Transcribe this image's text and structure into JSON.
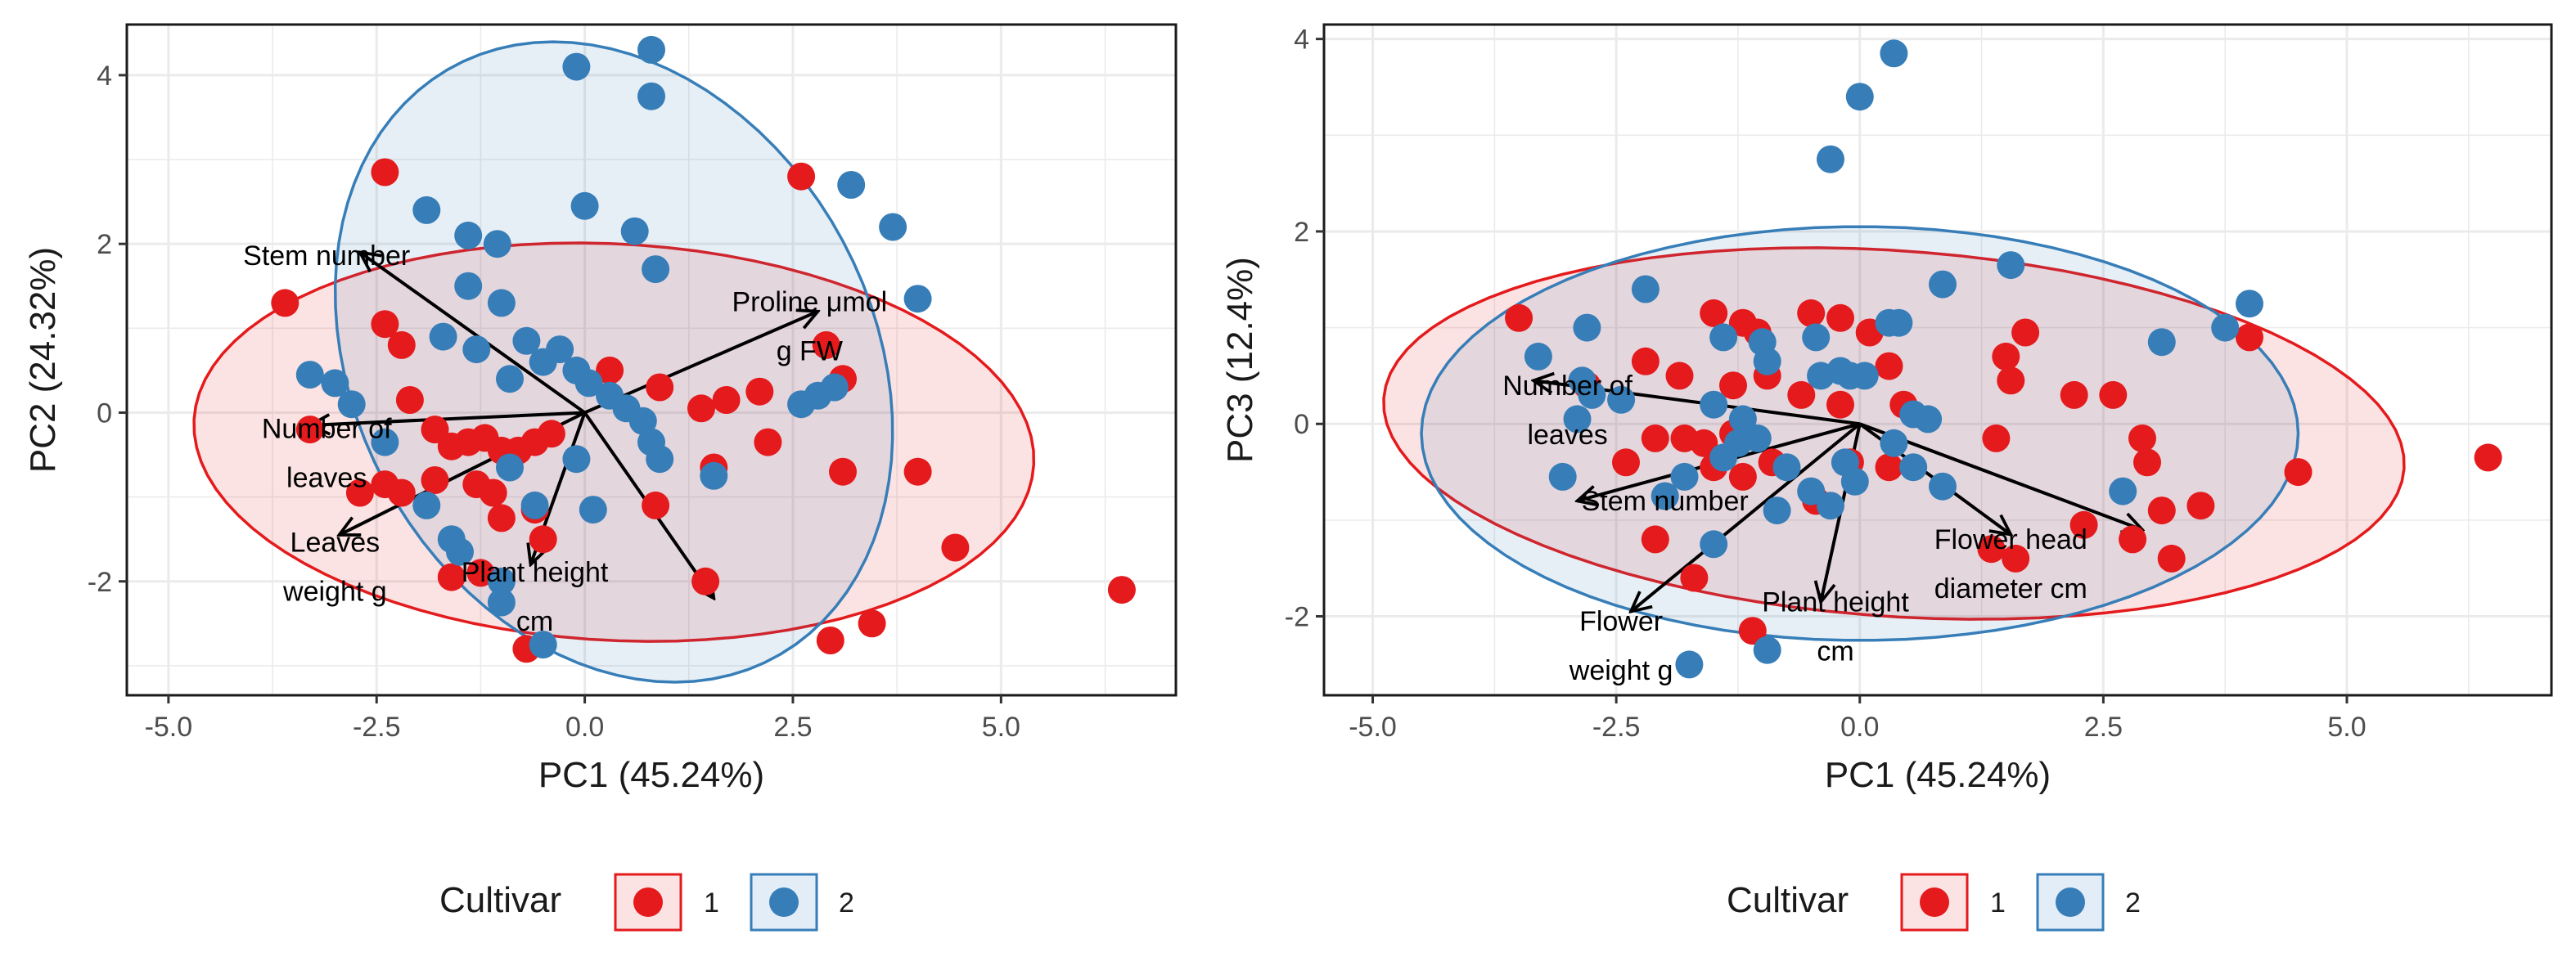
{
  "colors": {
    "cultivar_1": "#e41a1c",
    "cultivar_2": "#377eb8"
  },
  "chart_data": [
    {
      "type": "scatter",
      "subtype": "pca-biplot",
      "title": "",
      "xlabel": "PC1 (45.24%)",
      "ylabel": "PC2 (24.32%)",
      "xlim": [
        -5.5,
        7.1
      ],
      "ylim": [
        -3.35,
        4.6
      ],
      "xticks": [
        -5.0,
        -2.5,
        0.0,
        2.5,
        5.0
      ],
      "xtick_labels": [
        "-5.0",
        "-2.5",
        "0.0",
        "2.5",
        "5.0"
      ],
      "yticks": [
        -2,
        0,
        2,
        4
      ],
      "ytick_labels": [
        "-2",
        "0",
        "2",
        "4"
      ],
      "grid": true,
      "legend": {
        "title": "Cultivar",
        "position": "bottom",
        "entries": [
          "1",
          "2"
        ]
      },
      "ellipses": [
        {
          "series": "1",
          "center": [
            0.35,
            -0.35
          ],
          "rx": 5.05,
          "ry": 2.35,
          "angle_deg": -3
        },
        {
          "series": "2",
          "center": [
            0.35,
            0.6
          ],
          "rx": 4.0,
          "ry": 3.1,
          "angle_deg": -60
        }
      ],
      "loadings": [
        {
          "label_lines": [
            "Stem number"
          ],
          "x": -2.7,
          "y": 1.9,
          "label_x": -3.1,
          "label_y": 1.75
        },
        {
          "label_lines": [
            "Proline μmol",
            "g FW"
          ],
          "x": 2.8,
          "y": 1.2,
          "label_x": 2.7,
          "label_y": 1.2
        },
        {
          "label_lines": [
            "Number of",
            "leaves"
          ],
          "x": -3.3,
          "y": -0.15,
          "label_x": -3.1,
          "label_y": -0.3
        },
        {
          "label_lines": [
            "Leaves",
            "weight g"
          ],
          "x": -2.95,
          "y": -1.45,
          "label_x": -3.0,
          "label_y": -1.65
        },
        {
          "label_lines": [
            "Plant height",
            "cm"
          ],
          "x": -0.65,
          "y": -1.8,
          "label_x": -0.6,
          "label_y": -2.0
        },
        {
          "label_lines": [
            "",
            ""
          ],
          "x": 1.55,
          "y": -2.2,
          "label_x": 1.55,
          "label_y": -2.2
        }
      ],
      "series": [
        {
          "name": "1",
          "color": "#e41a1c",
          "points": [
            [
              -3.6,
              1.3
            ],
            [
              -2.4,
              2.85
            ],
            [
              -2.4,
              1.05
            ],
            [
              -2.2,
              0.8
            ],
            [
              -2.1,
              0.15
            ],
            [
              -1.8,
              -0.2
            ],
            [
              -1.6,
              -0.4
            ],
            [
              -1.4,
              -0.35
            ],
            [
              -1.2,
              -0.3
            ],
            [
              -1.0,
              -0.45
            ],
            [
              -3.3,
              -0.2
            ],
            [
              -2.7,
              -0.95
            ],
            [
              -2.4,
              -0.85
            ],
            [
              -2.2,
              -0.95
            ],
            [
              -1.8,
              -0.8
            ],
            [
              -1.3,
              -0.85
            ],
            [
              -1.1,
              -0.95
            ],
            [
              -0.8,
              -0.45
            ],
            [
              -0.6,
              -0.35
            ],
            [
              -0.4,
              -0.25
            ],
            [
              -0.6,
              -1.15
            ],
            [
              -1.0,
              -1.25
            ],
            [
              -1.25,
              -1.9
            ],
            [
              -1.6,
              -1.95
            ],
            [
              -0.5,
              -1.5
            ],
            [
              -0.7,
              -2.8
            ],
            [
              0.3,
              0.5
            ],
            [
              0.9,
              0.3
            ],
            [
              1.4,
              0.05
            ],
            [
              1.7,
              0.15
            ],
            [
              2.1,
              0.25
            ],
            [
              2.2,
              -0.35
            ],
            [
              1.55,
              -0.65
            ],
            [
              1.45,
              -2.0
            ],
            [
              2.6,
              2.8
            ],
            [
              2.9,
              0.8
            ],
            [
              3.1,
              0.4
            ],
            [
              3.1,
              -0.7
            ],
            [
              4.0,
              -0.7
            ],
            [
              4.45,
              -1.6
            ],
            [
              3.45,
              -2.5
            ],
            [
              2.95,
              -2.7
            ],
            [
              6.45,
              -2.1
            ],
            [
              0.85,
              -1.1
            ]
          ]
        },
        {
          "name": "2",
          "color": "#377eb8",
          "points": [
            [
              -0.1,
              4.1
            ],
            [
              0.8,
              4.3
            ],
            [
              0.8,
              3.75
            ],
            [
              3.2,
              2.7
            ],
            [
              3.7,
              2.2
            ],
            [
              4.0,
              1.35
            ],
            [
              -1.9,
              2.4
            ],
            [
              -1.4,
              2.1
            ],
            [
              -1.05,
              2.0
            ],
            [
              0.0,
              2.45
            ],
            [
              0.6,
              2.15
            ],
            [
              0.85,
              1.7
            ],
            [
              -1.4,
              1.5
            ],
            [
              -1.0,
              1.3
            ],
            [
              -0.7,
              0.85
            ],
            [
              -0.5,
              0.6
            ],
            [
              -0.3,
              0.75
            ],
            [
              -0.1,
              0.5
            ],
            [
              0.05,
              0.35
            ],
            [
              0.3,
              0.2
            ],
            [
              0.5,
              0.05
            ],
            [
              0.7,
              -0.1
            ],
            [
              0.8,
              -0.35
            ],
            [
              0.9,
              -0.55
            ],
            [
              -1.7,
              0.9
            ],
            [
              -1.3,
              0.75
            ],
            [
              -0.9,
              0.4
            ],
            [
              -3.3,
              0.45
            ],
            [
              -3.0,
              0.35
            ],
            [
              -2.8,
              0.1
            ],
            [
              -2.4,
              -0.35
            ],
            [
              -1.9,
              -1.1
            ],
            [
              -1.6,
              -1.5
            ],
            [
              -1.5,
              -1.65
            ],
            [
              -1.0,
              -2.0
            ],
            [
              -1.0,
              -2.25
            ],
            [
              -0.6,
              -1.1
            ],
            [
              -0.9,
              -0.65
            ],
            [
              0.1,
              -1.15
            ],
            [
              -0.1,
              -0.55
            ],
            [
              1.55,
              -0.75
            ],
            [
              2.6,
              0.1
            ],
            [
              2.8,
              0.2
            ],
            [
              3.0,
              0.3
            ],
            [
              -0.5,
              -2.75
            ]
          ]
        }
      ]
    },
    {
      "type": "scatter",
      "subtype": "pca-biplot",
      "title": "",
      "xlabel": "PC1 (45.24%)",
      "ylabel": "PC3 (12.4%)",
      "xlim": [
        -5.5,
        7.1
      ],
      "ylim": [
        -2.82,
        4.15
      ],
      "xticks": [
        -5.0,
        -2.5,
        0.0,
        2.5,
        5.0
      ],
      "xtick_labels": [
        "-5.0",
        "-2.5",
        "0.0",
        "2.5",
        "5.0"
      ],
      "yticks": [
        -2,
        0,
        2,
        4
      ],
      "ytick_labels": [
        "-2",
        "0",
        "2",
        "4"
      ],
      "grid": true,
      "legend": {
        "title": "Cultivar",
        "position": "bottom",
        "entries": [
          "1",
          "2"
        ]
      },
      "ellipses": [
        {
          "series": "1",
          "center": [
            0.35,
            -0.1
          ],
          "rx": 5.25,
          "ry": 1.9,
          "angle_deg": -4
        },
        {
          "series": "2",
          "center": [
            0.0,
            -0.1
          ],
          "rx": 4.5,
          "ry": 2.15,
          "angle_deg": 0
        }
      ],
      "loadings": [
        {
          "label_lines": [
            "Number of",
            "leaves"
          ],
          "x": -3.35,
          "y": 0.45,
          "label_x": -3.0,
          "label_y": 0.3
        },
        {
          "label_lines": [
            "Stem number"
          ],
          "x": -2.9,
          "y": -0.8,
          "label_x": -2.0,
          "label_y": -0.9
        },
        {
          "label_lines": [
            "Flower",
            "weight g"
          ],
          "x": -2.35,
          "y": -1.95,
          "label_x": -2.45,
          "label_y": -2.15
        },
        {
          "label_lines": [
            "Plant height",
            "cm"
          ],
          "x": -0.4,
          "y": -1.85,
          "label_x": -0.25,
          "label_y": -1.95
        },
        {
          "label_lines": [
            "Flower head",
            "diameter cm"
          ],
          "x": 1.55,
          "y": -1.15,
          "label_x": 1.55,
          "label_y": -1.3
        },
        {
          "label_lines": [
            "",
            ""
          ],
          "x": 2.9,
          "y": -1.1,
          "label_x": 2.9,
          "label_y": -1.1
        }
      ],
      "series": [
        {
          "name": "1",
          "color": "#e41a1c",
          "points": [
            [
              -3.5,
              1.1
            ],
            [
              -1.5,
              1.15
            ],
            [
              -1.2,
              1.05
            ],
            [
              -1.05,
              0.95
            ],
            [
              -0.5,
              1.15
            ],
            [
              -0.2,
              1.1
            ],
            [
              0.1,
              0.95
            ],
            [
              0.3,
              0.6
            ],
            [
              0.45,
              0.2
            ],
            [
              1.5,
              0.7
            ],
            [
              1.55,
              0.45
            ],
            [
              1.7,
              0.95
            ],
            [
              -2.8,
              0.4
            ],
            [
              -2.2,
              0.65
            ],
            [
              -1.85,
              0.5
            ],
            [
              -1.3,
              0.4
            ],
            [
              -0.95,
              0.5
            ],
            [
              -0.6,
              0.3
            ],
            [
              -0.2,
              0.2
            ],
            [
              -2.4,
              -0.4
            ],
            [
              -2.1,
              -0.15
            ],
            [
              -1.8,
              -0.15
            ],
            [
              -1.6,
              -0.2
            ],
            [
              -1.3,
              -0.1
            ],
            [
              -1.5,
              -0.45
            ],
            [
              -1.2,
              -0.55
            ],
            [
              -0.9,
              -0.4
            ],
            [
              -0.45,
              -0.8
            ],
            [
              -2.1,
              -1.2
            ],
            [
              -1.7,
              -1.6
            ],
            [
              -1.1,
              -2.15
            ],
            [
              -0.1,
              -0.4
            ],
            [
              0.3,
              -0.45
            ],
            [
              1.4,
              -0.15
            ],
            [
              1.35,
              -1.3
            ],
            [
              1.6,
              -1.4
            ],
            [
              2.2,
              0.3
            ],
            [
              2.6,
              0.3
            ],
            [
              2.9,
              -0.15
            ],
            [
              2.95,
              -0.4
            ],
            [
              2.3,
              -1.05
            ],
            [
              2.8,
              -1.2
            ],
            [
              3.1,
              -0.9
            ],
            [
              3.2,
              -1.4
            ],
            [
              3.5,
              -0.85
            ],
            [
              4.0,
              0.9
            ],
            [
              4.5,
              -0.5
            ],
            [
              6.45,
              -0.35
            ]
          ]
        },
        {
          "name": "2",
          "color": "#377eb8",
          "points": [
            [
              0.35,
              3.85
            ],
            [
              0.0,
              3.4
            ],
            [
              -0.3,
              2.75
            ],
            [
              1.55,
              1.65
            ],
            [
              3.75,
              1.0
            ],
            [
              4.0,
              1.25
            ],
            [
              -2.8,
              1.0
            ],
            [
              -2.2,
              1.4
            ],
            [
              -1.4,
              0.9
            ],
            [
              -1.0,
              0.85
            ],
            [
              -0.45,
              0.9
            ],
            [
              -0.95,
              0.65
            ],
            [
              0.3,
              1.05
            ],
            [
              0.4,
              1.05
            ],
            [
              0.85,
              1.45
            ],
            [
              3.1,
              0.85
            ],
            [
              -3.3,
              0.7
            ],
            [
              -2.85,
              0.45
            ],
            [
              -2.75,
              0.3
            ],
            [
              -2.9,
              0.05
            ],
            [
              -2.45,
              0.25
            ],
            [
              -1.5,
              0.2
            ],
            [
              -1.2,
              0.05
            ],
            [
              -0.4,
              0.5
            ],
            [
              -0.2,
              0.55
            ],
            [
              -0.1,
              0.5
            ],
            [
              0.05,
              0.5
            ],
            [
              0.55,
              0.1
            ],
            [
              0.7,
              0.05
            ],
            [
              -3.05,
              -0.55
            ],
            [
              -2.0,
              -0.75
            ],
            [
              -1.8,
              -0.55
            ],
            [
              -1.4,
              -0.35
            ],
            [
              -1.25,
              -0.2
            ],
            [
              -1.05,
              -0.15
            ],
            [
              -0.75,
              -0.45
            ],
            [
              -0.5,
              -0.7
            ],
            [
              -0.3,
              -0.85
            ],
            [
              -0.15,
              -0.4
            ],
            [
              -0.05,
              -0.6
            ],
            [
              0.35,
              -0.2
            ],
            [
              0.55,
              -0.45
            ],
            [
              0.85,
              -0.65
            ],
            [
              -1.5,
              -1.25
            ],
            [
              -0.85,
              -0.9
            ],
            [
              2.7,
              -0.7
            ],
            [
              -1.75,
              -2.5
            ],
            [
              -0.95,
              -2.35
            ]
          ]
        }
      ]
    }
  ]
}
